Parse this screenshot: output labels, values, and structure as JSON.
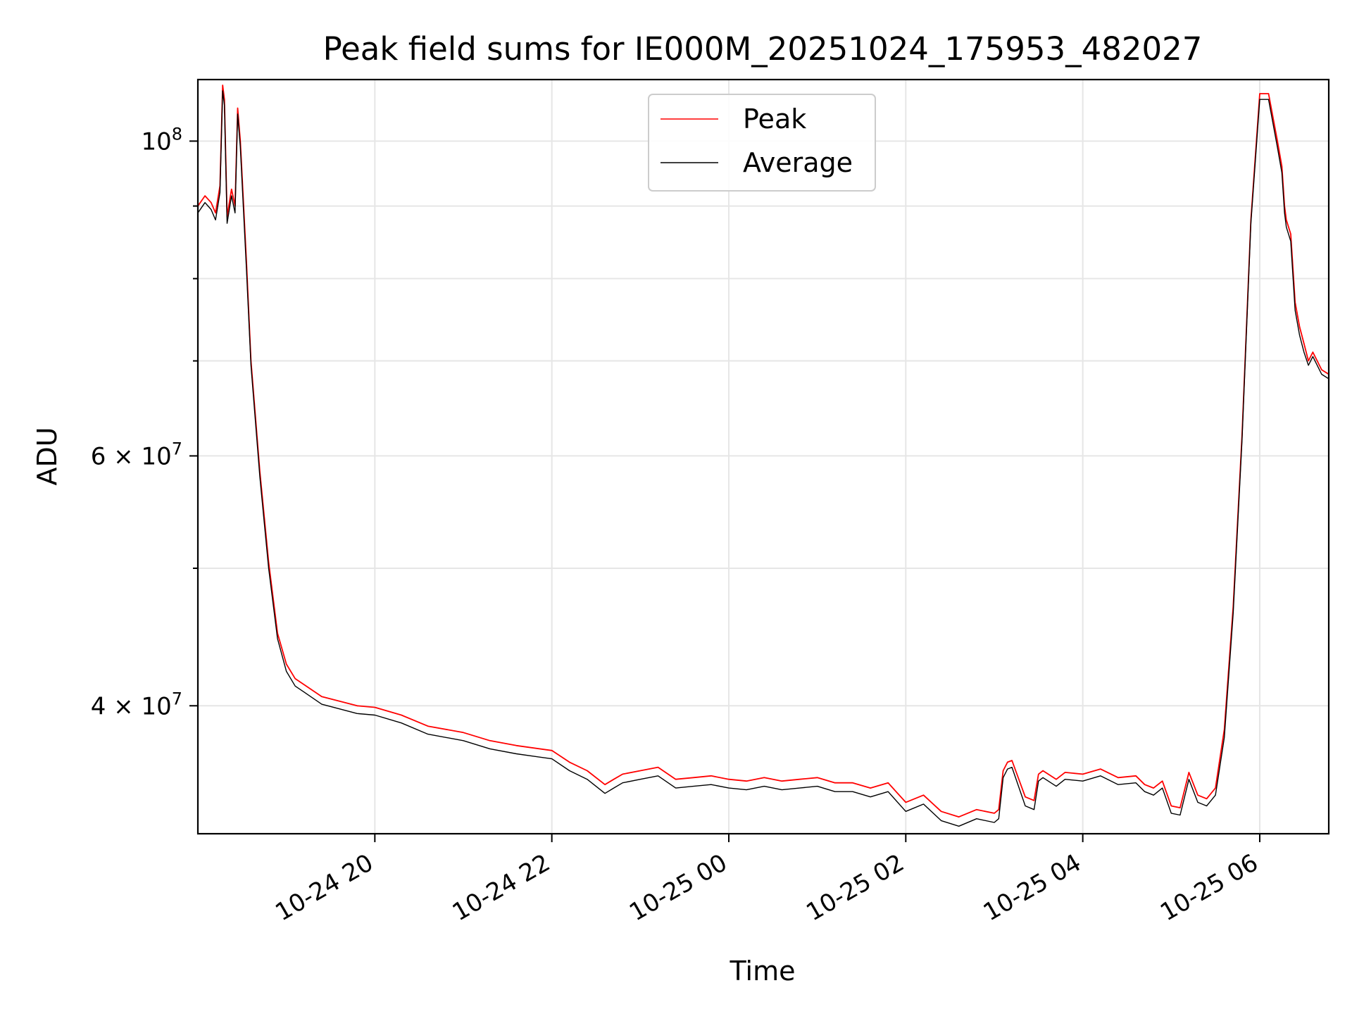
{
  "chart_data": {
    "type": "line",
    "title": "Peak field sums for IE000M_20251024_175953_482027",
    "xlabel": "Time",
    "ylabel": "ADU",
    "x_tick_labels": [
      "10-24 20",
      "10-24 22",
      "10-25 00",
      "10-25 02",
      "10-25 04",
      "10-25 06"
    ],
    "x_tick_hours": [
      20,
      22,
      24,
      26,
      28,
      30
    ],
    "y_major_ticks": [
      {
        "value": 40000000,
        "mantissa": "4",
        "exponent": "7"
      },
      {
        "value": 60000000,
        "mantissa": "6",
        "exponent": "7"
      },
      {
        "value": 100000000,
        "mantissa": "",
        "exponent": "8"
      }
    ],
    "y_minor_ticks": [
      50000000,
      70000000,
      80000000,
      90000000
    ],
    "y_scale": "log",
    "xlim_hours": [
      18.0,
      30.78
    ],
    "ylim": [
      32500000,
      110500000
    ],
    "grid": true,
    "legend_position": "upper center",
    "colors": {
      "peak": "#ff0000",
      "average": "#000000",
      "grid": "#e6e6e6"
    },
    "series": [
      {
        "name": "Peak",
        "color": "#ff0000",
        "x_hours": [
          18.0,
          18.08,
          18.15,
          18.2,
          18.25,
          18.28,
          18.3,
          18.33,
          18.38,
          18.42,
          18.45,
          18.48,
          18.55,
          18.6,
          18.7,
          18.8,
          18.9,
          19.0,
          19.1,
          19.2,
          19.4,
          19.6,
          19.8,
          20.0,
          20.3,
          20.6,
          21.0,
          21.3,
          21.6,
          22.0,
          22.2,
          22.4,
          22.6,
          22.7,
          22.8,
          23.0,
          23.2,
          23.4,
          23.6,
          23.8,
          24.0,
          24.2,
          24.4,
          24.6,
          24.8,
          25.0,
          25.2,
          25.4,
          25.6,
          25.8,
          26.0,
          26.2,
          26.4,
          26.6,
          26.8,
          27.0,
          27.05,
          27.1,
          27.15,
          27.2,
          27.35,
          27.45,
          27.5,
          27.55,
          27.7,
          27.8,
          28.0,
          28.2,
          28.4,
          28.6,
          28.7,
          28.8,
          28.9,
          29.0,
          29.1,
          29.2,
          29.3,
          29.4,
          29.5,
          29.6,
          29.7,
          29.8,
          29.9,
          30.0,
          30.1,
          30.2,
          30.25,
          30.28,
          30.3,
          30.35,
          30.4,
          30.45,
          30.5,
          30.55,
          30.6,
          30.7,
          30.78
        ],
        "values": [
          90000000,
          91500000,
          90500000,
          89000000,
          93000000,
          109500000,
          107000000,
          88500000,
          92500000,
          90000000,
          105500000,
          100000000,
          82000000,
          70000000,
          58500000,
          50500000,
          45000000,
          42800000,
          41800000,
          41400000,
          40600000,
          40300000,
          40000000,
          39900000,
          39400000,
          38700000,
          38300000,
          37800000,
          37500000,
          37200000,
          36500000,
          36000000,
          35200000,
          35500000,
          35800000,
          36000000,
          36200000,
          35500000,
          35600000,
          35700000,
          35500000,
          35400000,
          35600000,
          35400000,
          35500000,
          35600000,
          35300000,
          35300000,
          35000000,
          35300000,
          34200000,
          34600000,
          33700000,
          33400000,
          33800000,
          33600000,
          33800000,
          36000000,
          36500000,
          36600000,
          34500000,
          34300000,
          35800000,
          36000000,
          35500000,
          35900000,
          35800000,
          36100000,
          35600000,
          35700000,
          35200000,
          35000000,
          35400000,
          34000000,
          33900000,
          35900000,
          34600000,
          34400000,
          35000000,
          38500000,
          47000000,
          62000000,
          88000000,
          108000000,
          108000000,
          100000000,
          96000000,
          90000000,
          88000000,
          86000000,
          77000000,
          74000000,
          72000000,
          70000000,
          71000000,
          69000000,
          68500000
        ]
      },
      {
        "name": "Average",
        "color": "#000000",
        "x_hours": [
          18.0,
          18.08,
          18.15,
          18.2,
          18.25,
          18.28,
          18.3,
          18.33,
          18.38,
          18.42,
          18.45,
          18.48,
          18.55,
          18.6,
          18.7,
          18.8,
          18.9,
          19.0,
          19.1,
          19.2,
          19.4,
          19.6,
          19.8,
          20.0,
          20.3,
          20.6,
          21.0,
          21.3,
          21.6,
          22.0,
          22.2,
          22.4,
          22.6,
          22.7,
          22.8,
          23.0,
          23.2,
          23.4,
          23.6,
          23.8,
          24.0,
          24.2,
          24.4,
          24.6,
          24.8,
          25.0,
          25.2,
          25.4,
          25.6,
          25.8,
          26.0,
          26.2,
          26.4,
          26.6,
          26.8,
          27.0,
          27.05,
          27.1,
          27.15,
          27.2,
          27.35,
          27.45,
          27.5,
          27.55,
          27.7,
          27.8,
          28.0,
          28.2,
          28.4,
          28.6,
          28.7,
          28.8,
          28.9,
          29.0,
          29.1,
          29.2,
          29.3,
          29.4,
          29.5,
          29.6,
          29.7,
          29.8,
          29.9,
          30.0,
          30.1,
          30.2,
          30.25,
          30.28,
          30.3,
          30.35,
          30.4,
          30.45,
          30.5,
          30.55,
          30.6,
          30.7,
          30.78
        ],
        "values": [
          89000000,
          90500000,
          89500000,
          88000000,
          92000000,
          108500000,
          106000000,
          87500000,
          91500000,
          89000000,
          104500000,
          99000000,
          81000000,
          69500000,
          58000000,
          50000000,
          44600000,
          42300000,
          41300000,
          40900000,
          40100000,
          39800000,
          39500000,
          39400000,
          38900000,
          38200000,
          37800000,
          37300000,
          37000000,
          36700000,
          36000000,
          35500000,
          34700000,
          35000000,
          35300000,
          35500000,
          35700000,
          35000000,
          35100000,
          35200000,
          35000000,
          34900000,
          35100000,
          34900000,
          35000000,
          35100000,
          34800000,
          34800000,
          34500000,
          34800000,
          33700000,
          34100000,
          33200000,
          32900000,
          33300000,
          33100000,
          33300000,
          35600000,
          36100000,
          36200000,
          34000000,
          33800000,
          35400000,
          35600000,
          35100000,
          35500000,
          35400000,
          35700000,
          35200000,
          35300000,
          34800000,
          34600000,
          35000000,
          33600000,
          33500000,
          35500000,
          34200000,
          34000000,
          34600000,
          38000000,
          46500000,
          61500000,
          87500000,
          107000000,
          107000000,
          99000000,
          95000000,
          89000000,
          87000000,
          85000000,
          76000000,
          73000000,
          71000000,
          69500000,
          70500000,
          68500000,
          68000000
        ]
      }
    ]
  }
}
